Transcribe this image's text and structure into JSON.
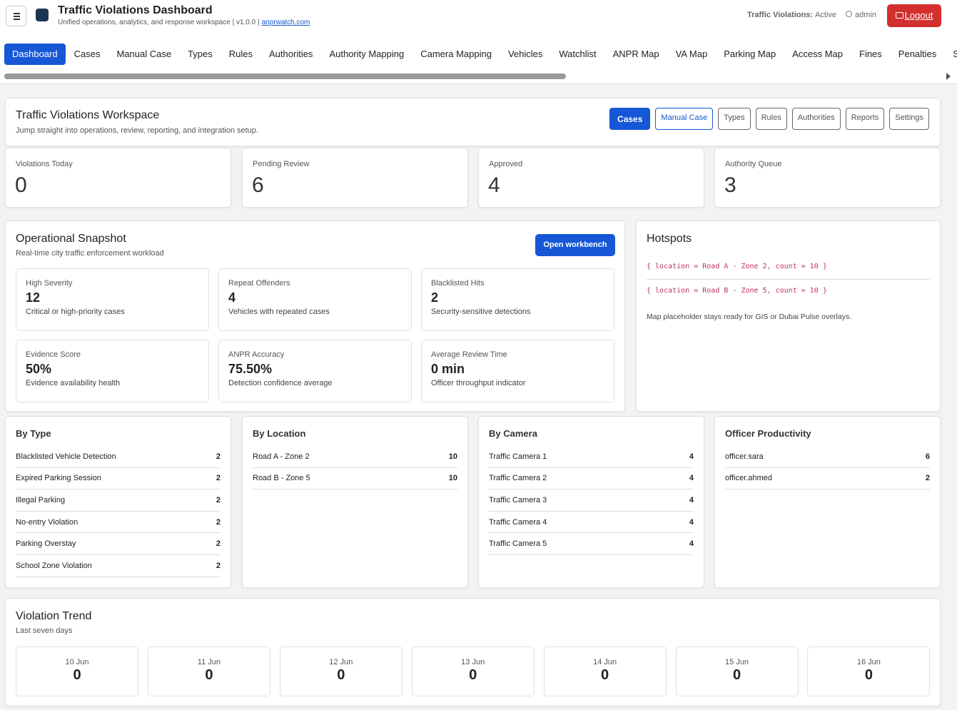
{
  "header": {
    "title": "Traffic Violations Dashboard",
    "subtitle": "Unified operations, analytics, and response workspace | v1.0.0 |",
    "link": "anprwatch.com",
    "status_label": "Traffic Violations:",
    "status_value": "Active",
    "user": "admin",
    "logout": "Logout"
  },
  "nav": {
    "tabs": [
      "Dashboard",
      "Cases",
      "Manual Case",
      "Types",
      "Rules",
      "Authorities",
      "Authority Mapping",
      "Camera Mapping",
      "Vehicles",
      "Watchlist",
      "ANPR Map",
      "VA Map",
      "Parking Map",
      "Access Map",
      "Fines",
      "Penalties",
      "Submissions"
    ]
  },
  "workspace": {
    "title": "Traffic Violations Workspace",
    "subtitle": "Jump straight into operations, review, reporting, and integration setup.",
    "buttons": [
      "Cases",
      "Manual Case",
      "Types",
      "Rules",
      "Authorities",
      "Reports",
      "Settings"
    ]
  },
  "stats": [
    {
      "label": "Violations Today",
      "value": 0
    },
    {
      "label": "Pending Review",
      "value": 6
    },
    {
      "label": "Approved",
      "value": 4
    },
    {
      "label": "Authority Queue",
      "value": 3
    }
  ],
  "snapshot": {
    "title": "Operational Snapshot",
    "subtitle": "Real-time city traffic enforcement workload",
    "button": "Open workbench",
    "metrics": [
      {
        "label": "High Severity",
        "value": 12,
        "note": "Critical or high-priority cases"
      },
      {
        "label": "Repeat Offenders",
        "value": 4,
        "note": "Vehicles with repeated cases"
      },
      {
        "label": "Blacklisted Hits",
        "value": 2,
        "note": "Security-sensitive detections"
      },
      {
        "label": "Evidence Score",
        "value": "50%",
        "note": "Evidence availability health"
      },
      {
        "label": "ANPR Accuracy",
        "value": "75.50%",
        "note": "Detection confidence average"
      },
      {
        "label": "Average Review Time",
        "value": "0 min",
        "note": "Officer throughput indicator"
      }
    ]
  },
  "hotspots": {
    "title": "Hotspots",
    "items": [
      "{ location = Road A - Zone 2, count = 10 }",
      "{ location = Road B - Zone 5, count = 10 }"
    ],
    "note": "Map placeholder stays ready for GIS or Dubai Pulse overlays."
  },
  "breakdowns": [
    {
      "title": "By Type",
      "rows": [
        [
          "Blacklisted Vehicle Detection",
          2
        ],
        [
          "Expired Parking Session",
          2
        ],
        [
          "Illegal Parking",
          2
        ],
        [
          "No-entry Violation",
          2
        ],
        [
          "Parking Overstay",
          2
        ],
        [
          "School Zone Violation",
          2
        ]
      ]
    },
    {
      "title": "By Location",
      "rows": [
        [
          "Road A - Zone 2",
          10
        ],
        [
          "Road B - Zone 5",
          10
        ]
      ]
    },
    {
      "title": "By Camera",
      "rows": [
        [
          "Traffic Camera 1",
          4
        ],
        [
          "Traffic Camera 2",
          4
        ],
        [
          "Traffic Camera 3",
          4
        ],
        [
          "Traffic Camera 4",
          4
        ],
        [
          "Traffic Camera 5",
          4
        ]
      ]
    },
    {
      "title": "Officer Productivity",
      "rows": [
        [
          "officer.sara",
          6
        ],
        [
          "officer.ahmed",
          2
        ]
      ]
    }
  ],
  "trend": {
    "title": "Violation Trend",
    "subtitle": "Last seven days",
    "days": [
      {
        "label": "10 Jun",
        "value": 0
      },
      {
        "label": "11 Jun",
        "value": 0
      },
      {
        "label": "12 Jun",
        "value": 0
      },
      {
        "label": "13 Jun",
        "value": 0
      },
      {
        "label": "14 Jun",
        "value": 0
      },
      {
        "label": "15 Jun",
        "value": 0
      },
      {
        "label": "16 Jun",
        "value": 0
      }
    ]
  }
}
